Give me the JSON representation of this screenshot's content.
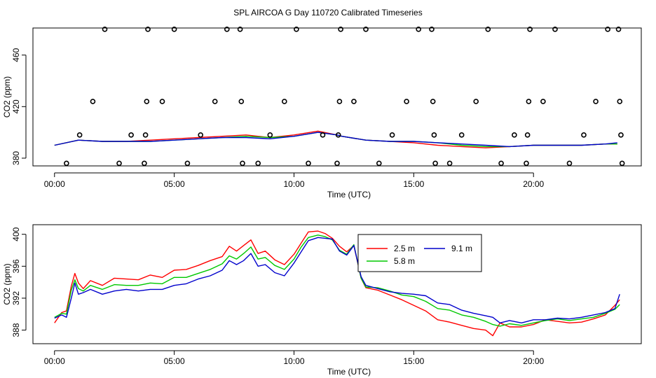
{
  "title": "SPL AIRCOA G  Day 110720  Calibrated Timeseries",
  "chart_data": [
    {
      "type": "scatter+line",
      "xlabel": "Time (UTC)",
      "ylabel": "CO2 (ppm)",
      "xlim": [
        -0.9,
        24.5
      ],
      "ylim": [
        374,
        481
      ],
      "xticks": [
        0,
        5,
        10,
        15,
        20
      ],
      "xtick_labels": [
        "00:00",
        "05:00",
        "10:00",
        "15:00",
        "20:00"
      ],
      "yticks": [
        380,
        420,
        460
      ],
      "ytick_labels": [
        "380",
        "420",
        "460"
      ],
      "calibration_points": [
        {
          "x": 0.5,
          "y": 376
        },
        {
          "x": 1.05,
          "y": 398
        },
        {
          "x": 1.6,
          "y": 424
        },
        {
          "x": 2.1,
          "y": 480
        },
        {
          "x": 2.7,
          "y": 376
        },
        {
          "x": 3.2,
          "y": 398
        },
        {
          "x": 3.75,
          "y": 376
        },
        {
          "x": 3.8,
          "y": 398
        },
        {
          "x": 3.85,
          "y": 424
        },
        {
          "x": 3.9,
          "y": 480
        },
        {
          "x": 4.5,
          "y": 424
        },
        {
          "x": 5.0,
          "y": 480
        },
        {
          "x": 5.55,
          "y": 376
        },
        {
          "x": 6.1,
          "y": 398
        },
        {
          "x": 6.7,
          "y": 424
        },
        {
          "x": 7.2,
          "y": 480
        },
        {
          "x": 7.75,
          "y": 480
        },
        {
          "x": 7.8,
          "y": 424
        },
        {
          "x": 7.85,
          "y": 376
        },
        {
          "x": 8.5,
          "y": 376
        },
        {
          "x": 9.0,
          "y": 398
        },
        {
          "x": 9.6,
          "y": 424
        },
        {
          "x": 10.1,
          "y": 480
        },
        {
          "x": 10.6,
          "y": 376
        },
        {
          "x": 11.2,
          "y": 398
        },
        {
          "x": 11.8,
          "y": 376
        },
        {
          "x": 11.85,
          "y": 398
        },
        {
          "x": 11.9,
          "y": 424
        },
        {
          "x": 11.95,
          "y": 480
        },
        {
          "x": 12.5,
          "y": 424
        },
        {
          "x": 13.0,
          "y": 480
        },
        {
          "x": 13.55,
          "y": 376
        },
        {
          "x": 14.1,
          "y": 398
        },
        {
          "x": 14.7,
          "y": 424
        },
        {
          "x": 15.2,
          "y": 480
        },
        {
          "x": 15.75,
          "y": 480
        },
        {
          "x": 15.8,
          "y": 424
        },
        {
          "x": 15.85,
          "y": 398
        },
        {
          "x": 15.9,
          "y": 376
        },
        {
          "x": 16.5,
          "y": 376
        },
        {
          "x": 17.0,
          "y": 398
        },
        {
          "x": 17.6,
          "y": 424
        },
        {
          "x": 18.1,
          "y": 480
        },
        {
          "x": 18.65,
          "y": 376
        },
        {
          "x": 19.2,
          "y": 398
        },
        {
          "x": 19.7,
          "y": 376
        },
        {
          "x": 19.75,
          "y": 398
        },
        {
          "x": 19.8,
          "y": 424
        },
        {
          "x": 19.85,
          "y": 480
        },
        {
          "x": 20.4,
          "y": 424
        },
        {
          "x": 20.9,
          "y": 480
        },
        {
          "x": 21.5,
          "y": 376
        },
        {
          "x": 22.1,
          "y": 398
        },
        {
          "x": 22.6,
          "y": 424
        },
        {
          "x": 23.1,
          "y": 480
        },
        {
          "x": 23.55,
          "y": 480
        },
        {
          "x": 23.6,
          "y": 424
        },
        {
          "x": 23.65,
          "y": 398
        },
        {
          "x": 23.7,
          "y": 376
        }
      ],
      "series": [
        {
          "name": "2.5 m",
          "color": "#ff0000",
          "x": [
            0,
            1,
            2,
            3,
            4,
            5,
            6,
            7,
            8,
            9,
            10,
            11,
            11.8,
            12,
            13,
            14,
            15,
            16,
            17,
            18,
            19,
            20,
            21,
            22,
            23,
            23.5
          ],
          "y": [
            390,
            394,
            393,
            393,
            394,
            395,
            396,
            397,
            398,
            396,
            398,
            401,
            398,
            397,
            394,
            393,
            392,
            390,
            389,
            388,
            389,
            390,
            390,
            390,
            391,
            391
          ]
        },
        {
          "name": "5.8 m",
          "color": "#00c800",
          "x": [
            0,
            1,
            2,
            3,
            4,
            5,
            6,
            7,
            8,
            9,
            10,
            11,
            11.8,
            12,
            13,
            14,
            15,
            16,
            17,
            18,
            19,
            20,
            21,
            22,
            23,
            23.5
          ],
          "y": [
            390,
            394,
            393,
            393,
            393,
            394,
            395,
            396,
            397,
            396,
            397,
            400,
            398,
            397,
            394,
            393,
            393,
            392,
            390,
            389,
            389,
            390,
            390,
            390,
            391,
            391
          ]
        },
        {
          "name": "9.1 m",
          "color": "#0000cc",
          "x": [
            0,
            1,
            2,
            3,
            4,
            5,
            6,
            7,
            8,
            9,
            10,
            11,
            11.8,
            12,
            13,
            14,
            15,
            16,
            17,
            18,
            19,
            20,
            21,
            22,
            23,
            23.5
          ],
          "y": [
            390,
            394,
            393,
            393,
            393,
            394,
            395,
            396,
            396,
            395,
            397,
            400,
            398,
            397,
            394,
            393,
            393,
            392,
            391,
            390,
            389,
            390,
            390,
            390,
            391,
            392
          ]
        }
      ]
    },
    {
      "type": "line",
      "xlabel": "Time (UTC)",
      "ylabel": "CO2 (ppm)",
      "xlim": [
        -0.9,
        24.5
      ],
      "ylim": [
        386.3,
        401.2
      ],
      "xticks": [
        0,
        5,
        10,
        15,
        20
      ],
      "xtick_labels": [
        "00:00",
        "05:00",
        "10:00",
        "15:00",
        "20:00"
      ],
      "yticks": [
        388,
        392,
        396,
        400
      ],
      "ytick_labels": [
        "388",
        "392",
        "396",
        "400"
      ],
      "legend": [
        "2.5 m",
        "5.8 m",
        "9.1 m"
      ],
      "series": [
        {
          "name": "2.5 m",
          "color": "#ff0000",
          "x": [
            0,
            0.3,
            0.5,
            0.7,
            0.85,
            1,
            1.2,
            1.5,
            2,
            2.5,
            3,
            3.5,
            4,
            4.5,
            5,
            5.5,
            6,
            6.5,
            7,
            7.3,
            7.6,
            7.9,
            8.2,
            8.5,
            8.8,
            9.2,
            9.6,
            10,
            10.3,
            10.6,
            11,
            11.3,
            11.6,
            11.9,
            12.2,
            12.5,
            12.8,
            13,
            13.5,
            14,
            14.5,
            15,
            15.5,
            16,
            16.5,
            17,
            17.5,
            18,
            18.3,
            18.6,
            19,
            19.5,
            20,
            20.5,
            21,
            21.5,
            22,
            22.5,
            23,
            23.4,
            23.6
          ],
          "y": [
            388.9,
            390.2,
            390.4,
            393.5,
            395.1,
            393.9,
            393.2,
            394.2,
            393.6,
            394.5,
            394.4,
            394.3,
            394.9,
            394.6,
            395.5,
            395.6,
            396.1,
            396.7,
            397.2,
            398.5,
            397.9,
            398.6,
            399.3,
            397.6,
            397.9,
            396.8,
            396.2,
            397.5,
            398.9,
            400.3,
            400.4,
            400.1,
            399.5,
            398.5,
            397.8,
            398.6,
            394.5,
            393.3,
            393.0,
            392.4,
            391.8,
            391.1,
            390.4,
            389.3,
            389.0,
            388.6,
            388.2,
            388.0,
            387.3,
            388.9,
            388.4,
            388.4,
            388.7,
            389.3,
            389.1,
            388.9,
            389.0,
            389.4,
            389.9,
            391.1,
            391.8
          ]
        },
        {
          "name": "5.8 m",
          "color": "#00c800",
          "x": [
            0,
            0.3,
            0.5,
            0.7,
            0.85,
            1,
            1.2,
            1.5,
            2,
            2.5,
            3,
            3.5,
            4,
            4.5,
            5,
            5.5,
            6,
            6.5,
            7,
            7.3,
            7.6,
            7.9,
            8.2,
            8.5,
            8.8,
            9.2,
            9.6,
            10,
            10.3,
            10.6,
            11,
            11.3,
            11.6,
            11.9,
            12.2,
            12.5,
            12.8,
            13,
            13.5,
            14,
            14.5,
            15,
            15.5,
            16,
            16.5,
            17,
            17.5,
            18,
            18.3,
            18.6,
            19,
            19.5,
            20,
            20.5,
            21,
            21.5,
            22,
            22.5,
            23,
            23.4,
            23.6
          ],
          "y": [
            389.6,
            390.1,
            390.0,
            393.0,
            394.3,
            393.2,
            392.9,
            393.6,
            393.1,
            393.7,
            393.6,
            393.6,
            393.9,
            393.8,
            394.6,
            394.6,
            395.1,
            395.6,
            396.3,
            397.3,
            396.9,
            397.6,
            398.4,
            396.9,
            397.1,
            396.1,
            395.6,
            396.9,
            398.4,
            399.6,
            399.9,
            399.7,
            399.3,
            398.0,
            397.5,
            398.7,
            394.5,
            393.4,
            393.3,
            392.9,
            392.4,
            392.2,
            391.6,
            390.7,
            390.5,
            389.9,
            389.6,
            389.1,
            388.7,
            388.5,
            388.8,
            388.6,
            388.9,
            389.2,
            389.4,
            389.2,
            389.4,
            389.6,
            390.1,
            390.6,
            391.2
          ]
        },
        {
          "name": "9.1 m",
          "color": "#0000cc",
          "x": [
            0,
            0.3,
            0.5,
            0.7,
            0.85,
            1,
            1.2,
            1.5,
            2,
            2.5,
            3,
            3.5,
            4,
            4.5,
            5,
            5.5,
            6,
            6.5,
            7,
            7.3,
            7.6,
            7.9,
            8.2,
            8.5,
            8.8,
            9.2,
            9.6,
            10,
            10.3,
            10.6,
            11,
            11.3,
            11.6,
            11.9,
            12.2,
            12.5,
            12.8,
            13,
            13.5,
            14,
            14.5,
            15,
            15.5,
            16,
            16.5,
            17,
            17.5,
            18,
            18.3,
            18.6,
            19,
            19.5,
            20,
            20.5,
            21,
            21.5,
            22,
            22.5,
            23,
            23.4,
            23.6
          ],
          "y": [
            389.5,
            389.9,
            389.6,
            392.0,
            393.9,
            392.5,
            392.7,
            393.1,
            392.5,
            392.9,
            393.1,
            392.9,
            393.1,
            393.1,
            393.6,
            393.8,
            394.4,
            394.8,
            395.5,
            396.7,
            396.2,
            396.7,
            397.6,
            396.0,
            396.2,
            395.2,
            394.8,
            396.4,
            397.8,
            399.2,
            399.6,
            399.5,
            399.4,
            397.9,
            397.4,
            398.6,
            394.7,
            393.6,
            393.2,
            392.8,
            392.6,
            392.5,
            392.3,
            391.4,
            391.2,
            390.5,
            390.1,
            389.8,
            389.6,
            388.9,
            389.2,
            388.9,
            389.3,
            389.3,
            389.5,
            389.4,
            389.6,
            389.9,
            390.2,
            390.7,
            392.5
          ]
        }
      ]
    }
  ]
}
